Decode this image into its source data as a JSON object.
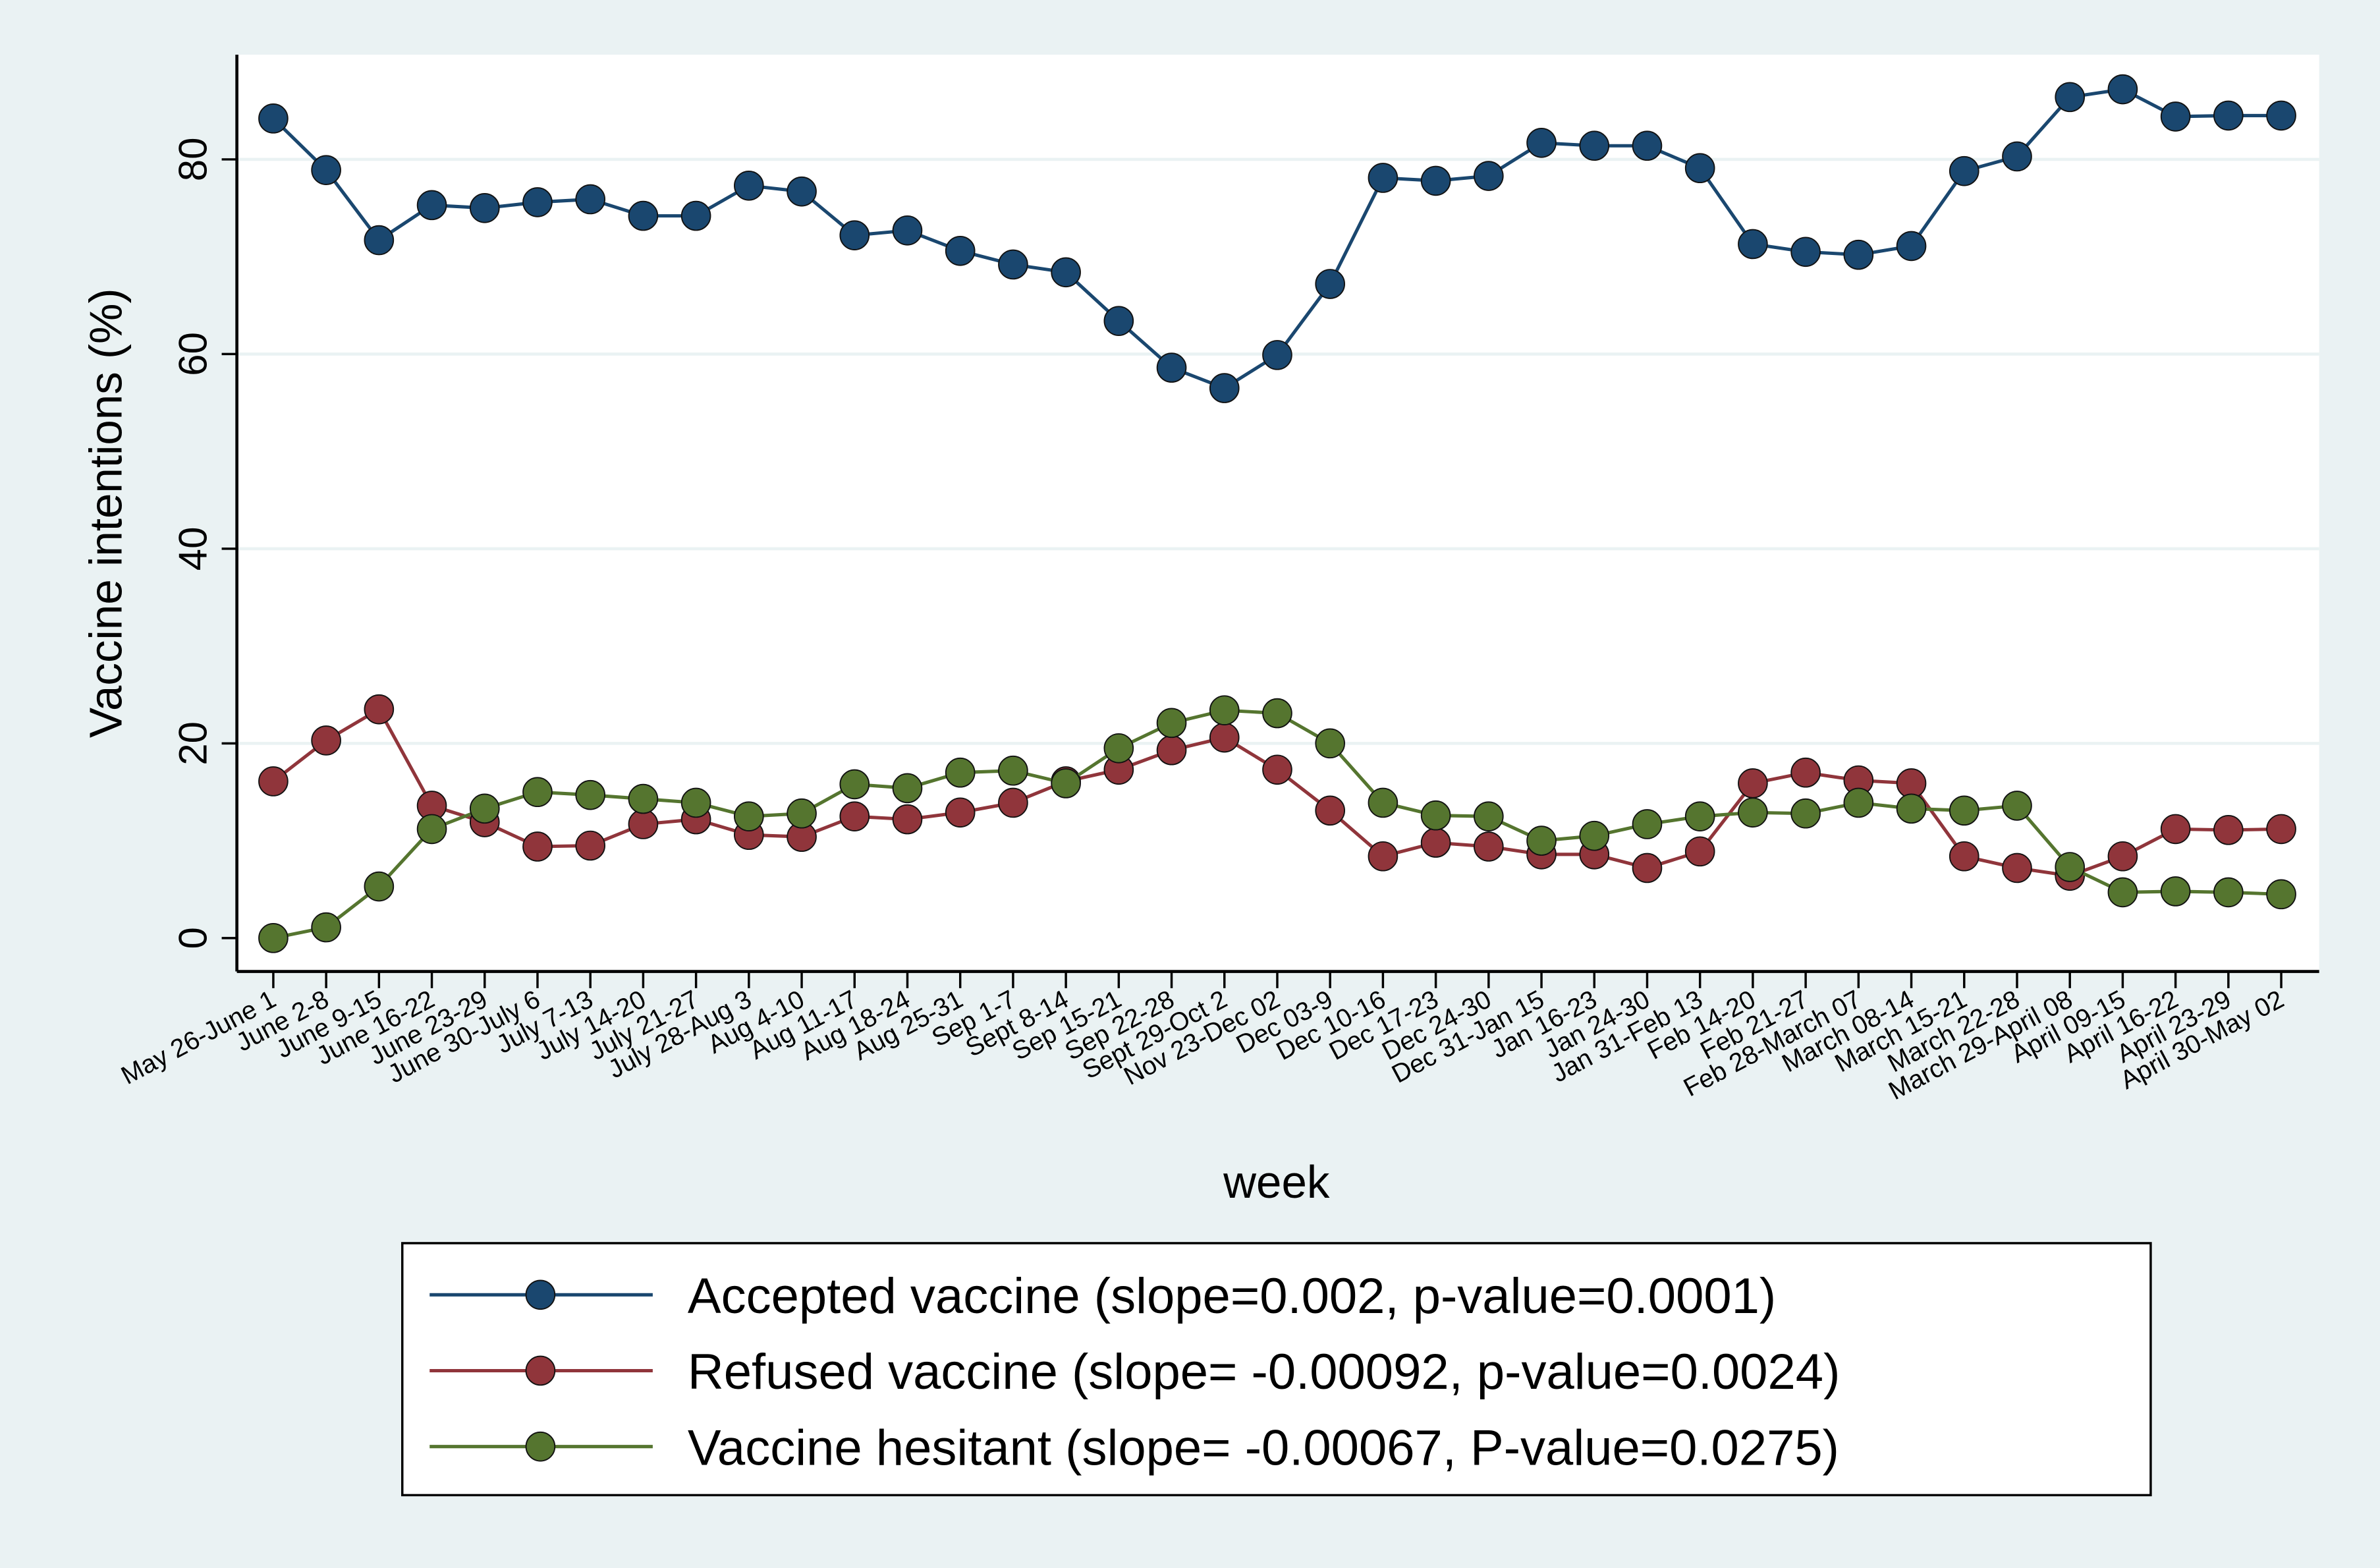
{
  "chart_data": {
    "type": "line",
    "title": "",
    "xlabel": "week",
    "ylabel": "Vaccine intentions (%)",
    "ylim": [
      0,
      90
    ],
    "yticks": [
      0,
      20,
      40,
      60,
      80
    ],
    "grid": true,
    "legend_placement": "bottom",
    "categories": [
      "May 26-June 1",
      "June 2-8",
      "June 9-15",
      "June 16-22",
      "June 23-29",
      "June 30-July 6",
      "July 7-13",
      "July 14-20",
      "July 21-27",
      "July 28-Aug 3",
      "Aug 4-10",
      "Aug 11-17",
      "Aug 18-24",
      "Aug 25-31",
      "Sep 1-7",
      "Sept 8-14",
      "Sep 15-21",
      "Sep 22-28",
      "Sept 29-Oct 2",
      "Nov 23-Dec 02",
      "Dec 03-9",
      "Dec 10-16",
      "Dec 17-23",
      "Dec 24-30",
      "Dec 31-Jan 15",
      "Jan 16-23",
      "Jan 24-30",
      "Jan 31-Feb 13",
      "Feb 14-20",
      "Feb 21-27",
      "Feb 28-March 07",
      "March 08-14",
      "March 15-21",
      "March 22-28",
      "March 29-April 08",
      "April 09-15",
      "April 16-22",
      "April 23-29",
      "April 30-May 02"
    ],
    "series": [
      {
        "name": "Accepted vaccine (slope=0.002, p-value=0.0001)",
        "color": "#1a476f",
        "values": [
          84.2,
          78.9,
          71.7,
          75.3,
          75.0,
          75.6,
          75.9,
          74.2,
          74.2,
          77.3,
          76.7,
          72.2,
          72.7,
          70.6,
          69.2,
          68.4,
          63.4,
          58.6,
          56.5,
          59.9,
          67.2,
          78.1,
          77.8,
          78.3,
          81.7,
          81.4,
          81.4,
          79.1,
          71.3,
          70.5,
          70.2,
          71.1,
          78.8,
          80.3,
          86.4,
          87.2,
          84.4,
          84.5,
          84.5
        ]
      },
      {
        "name": "Refused vaccine (slope= -0.00092, p-value=0.0024)",
        "color": "#90353b",
        "values": [
          16.1,
          20.3,
          23.5,
          13.6,
          11.9,
          9.4,
          9.5,
          11.7,
          12.2,
          10.6,
          10.4,
          12.5,
          12.2,
          12.9,
          13.9,
          16.1,
          17.3,
          19.3,
          20.6,
          17.3,
          13.1,
          8.4,
          9.8,
          9.4,
          8.6,
          8.6,
          7.2,
          8.9,
          15.9,
          17.0,
          16.2,
          15.9,
          8.4,
          7.2,
          6.4,
          8.4,
          11.2,
          11.1,
          11.2
        ]
      },
      {
        "name": "Vaccine hesitant (slope= -0.00067, P-value=0.0275)",
        "color": "#55752f",
        "values": [
          0.0,
          1.1,
          5.3,
          11.2,
          13.3,
          15.0,
          14.7,
          14.3,
          13.9,
          12.5,
          12.8,
          15.8,
          15.4,
          17.0,
          17.2,
          15.9,
          19.5,
          22.1,
          23.4,
          23.1,
          20.0,
          13.9,
          12.6,
          12.5,
          10.0,
          10.5,
          11.7,
          12.5,
          12.9,
          12.8,
          13.9,
          13.3,
          13.1,
          13.6,
          7.3,
          4.7,
          4.8,
          4.7,
          4.5
        ]
      }
    ]
  }
}
